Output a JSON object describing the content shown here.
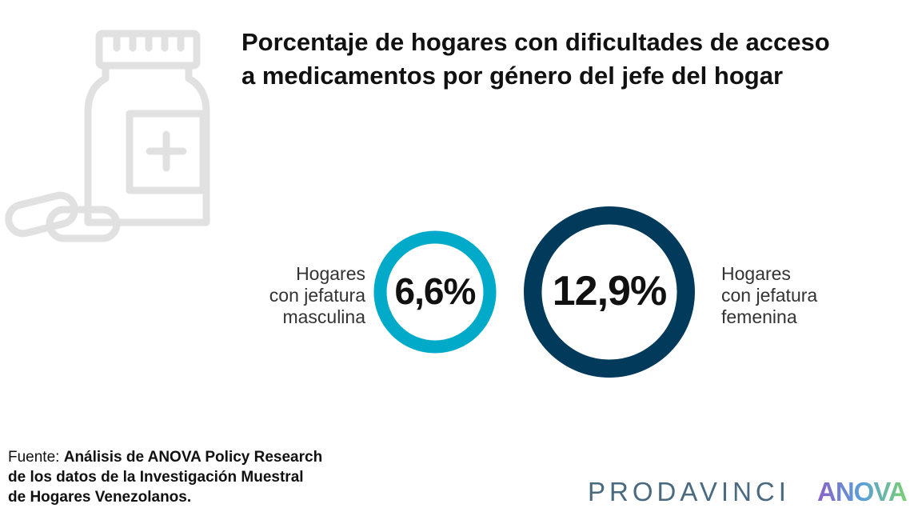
{
  "title_lines": [
    "Porcentaje de hogares con dificultades de acceso",
    "a medicamentos por género del jefe del hogar"
  ],
  "chart_data": {
    "type": "donut-comparison",
    "title": "Porcentaje de hogares con dificultades de acceso a medicamentos por género del jefe del hogar",
    "unit": "%",
    "items": [
      {
        "name": "Hogares con jefatura masculina",
        "label_lines": [
          "Hogares",
          "con jefatura",
          "masculina"
        ],
        "value": 6.6,
        "display": "6,6%",
        "color": "#00aac8"
      },
      {
        "name": "Hogares con jefatura femenina",
        "label_lines": [
          "Hogares",
          "con jefatura",
          "femenina"
        ],
        "value": 12.9,
        "display": "12,9%",
        "color": "#023a5c"
      }
    ]
  },
  "source": {
    "prefix": "Fuente: ",
    "lines": [
      "Análisis de ANOVA Policy Research",
      "de los datos de la Investigación Muestral",
      "de Hogares Venezolanos."
    ]
  },
  "logos": {
    "prodavinci": "PRODAVINCI",
    "anova": "ANOVA"
  },
  "icons": {
    "decoration": "medicine-bottle-icon"
  },
  "colors": {
    "icon_gray": "#e1e1e1",
    "masculina": "#00aac8",
    "femenina": "#023a5c"
  }
}
